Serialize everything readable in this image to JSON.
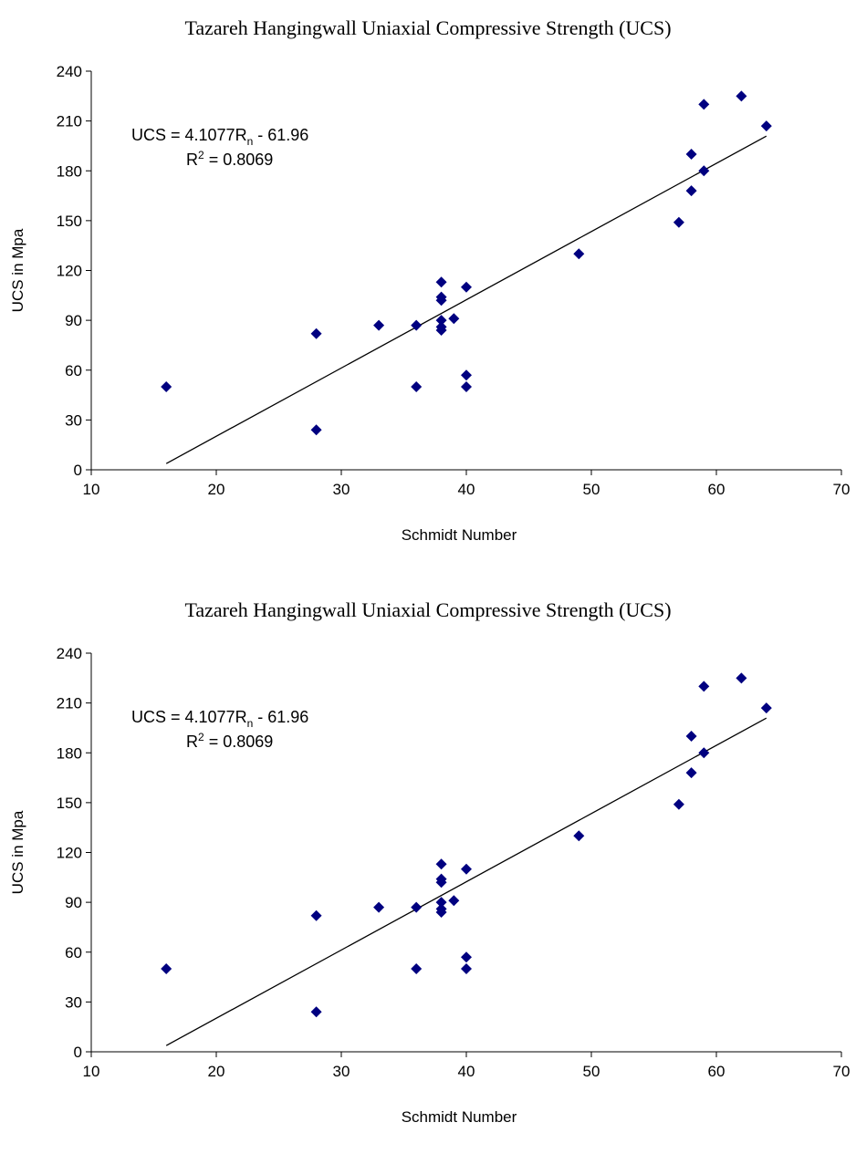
{
  "chart_data": [
    {
      "type": "scatter",
      "title": "Tazareh Hangingwall Uniaxial Compressive Strength (UCS)",
      "xlabel": "Schmidt Number",
      "ylabel": "UCS in Mpa",
      "xlim": [
        10,
        70
      ],
      "ylim": [
        0,
        240
      ],
      "x_ticks": [
        10,
        20,
        30,
        40,
        50,
        60,
        70
      ],
      "y_ticks": [
        0,
        30,
        60,
        90,
        120,
        150,
        180,
        210,
        240
      ],
      "grid": false,
      "marker_color": "#000080",
      "points": [
        {
          "x": 16,
          "y": 50
        },
        {
          "x": 28,
          "y": 82
        },
        {
          "x": 28,
          "y": 24
        },
        {
          "x": 33,
          "y": 87
        },
        {
          "x": 36,
          "y": 87
        },
        {
          "x": 36,
          "y": 50
        },
        {
          "x": 38,
          "y": 113
        },
        {
          "x": 38,
          "y": 104
        },
        {
          "x": 38,
          "y": 102
        },
        {
          "x": 38,
          "y": 90
        },
        {
          "x": 38,
          "y": 86
        },
        {
          "x": 38,
          "y": 84
        },
        {
          "x": 39,
          "y": 91
        },
        {
          "x": 40,
          "y": 110
        },
        {
          "x": 40,
          "y": 57
        },
        {
          "x": 40,
          "y": 50
        },
        {
          "x": 49,
          "y": 130
        },
        {
          "x": 57,
          "y": 149
        },
        {
          "x": 58,
          "y": 190
        },
        {
          "x": 58,
          "y": 168
        },
        {
          "x": 59,
          "y": 220
        },
        {
          "x": 59,
          "y": 180
        },
        {
          "x": 62,
          "y": 225
        },
        {
          "x": 64,
          "y": 207
        }
      ],
      "trendline": {
        "type": "linear",
        "slope": 4.1077,
        "intercept": -61.96,
        "x_range": [
          16,
          64
        ]
      },
      "equation": {
        "prefix": "UCS = 4.1077R",
        "subscript": "n",
        "suffix": " - 61.96"
      },
      "r_squared": {
        "prefix": "R",
        "superscript": "2",
        "suffix": " = 0.8069"
      }
    },
    {
      "type": "scatter",
      "title": "Tazareh Hangingwall Uniaxial Compressive Strength (UCS)",
      "xlabel": "Schmidt Number",
      "ylabel": "UCS in Mpa",
      "xlim": [
        10,
        70
      ],
      "ylim": [
        0,
        240
      ],
      "x_ticks": [
        10,
        20,
        30,
        40,
        50,
        60,
        70
      ],
      "y_ticks": [
        0,
        30,
        60,
        90,
        120,
        150,
        180,
        210,
        240
      ],
      "grid": false,
      "marker_color": "#000080",
      "points": [
        {
          "x": 16,
          "y": 50
        },
        {
          "x": 28,
          "y": 82
        },
        {
          "x": 28,
          "y": 24
        },
        {
          "x": 33,
          "y": 87
        },
        {
          "x": 36,
          "y": 87
        },
        {
          "x": 36,
          "y": 50
        },
        {
          "x": 38,
          "y": 113
        },
        {
          "x": 38,
          "y": 104
        },
        {
          "x": 38,
          "y": 102
        },
        {
          "x": 38,
          "y": 90
        },
        {
          "x": 38,
          "y": 86
        },
        {
          "x": 38,
          "y": 84
        },
        {
          "x": 39,
          "y": 91
        },
        {
          "x": 40,
          "y": 110
        },
        {
          "x": 40,
          "y": 57
        },
        {
          "x": 40,
          "y": 50
        },
        {
          "x": 49,
          "y": 130
        },
        {
          "x": 57,
          "y": 149
        },
        {
          "x": 58,
          "y": 190
        },
        {
          "x": 58,
          "y": 168
        },
        {
          "x": 59,
          "y": 220
        },
        {
          "x": 59,
          "y": 180
        },
        {
          "x": 62,
          "y": 225
        },
        {
          "x": 64,
          "y": 207
        }
      ],
      "trendline": {
        "type": "linear",
        "slope": 4.1077,
        "intercept": -61.96,
        "x_range": [
          16,
          64
        ]
      },
      "equation": {
        "prefix": "UCS = 4.1077R",
        "subscript": "n",
        "suffix": " - 61.96"
      },
      "r_squared": {
        "prefix": "R",
        "superscript": "2",
        "suffix": " = 0.8069"
      }
    }
  ]
}
